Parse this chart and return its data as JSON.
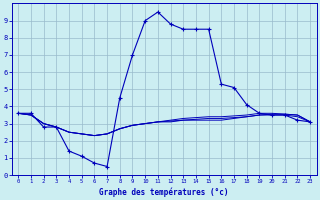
{
  "xlabel": "Graphe des températures (°c)",
  "bg_color": "#cceef2",
  "line_color": "#0000bb",
  "grid_color": "#99bbcc",
  "xlim": [
    -0.5,
    23.5
  ],
  "ylim": [
    0,
    10
  ],
  "xticks": [
    0,
    1,
    2,
    3,
    4,
    5,
    6,
    7,
    8,
    9,
    10,
    11,
    12,
    13,
    14,
    15,
    16,
    17,
    18,
    19,
    20,
    21,
    22,
    23
  ],
  "yticks": [
    0,
    1,
    2,
    3,
    4,
    5,
    6,
    7,
    8,
    9
  ],
  "series1_x": [
    0,
    1,
    2,
    3,
    4,
    5,
    6,
    7,
    8,
    9,
    10,
    11,
    12,
    13,
    14,
    15,
    16,
    17,
    18,
    19,
    20,
    21,
    22,
    23
  ],
  "series1_y": [
    3.6,
    3.6,
    2.8,
    2.8,
    1.4,
    1.1,
    0.7,
    0.5,
    4.5,
    7.0,
    9.0,
    9.5,
    8.8,
    8.5,
    8.5,
    8.5,
    5.3,
    5.1,
    4.1,
    3.6,
    3.5,
    3.5,
    3.2,
    3.1
  ],
  "series2_x": [
    0,
    1,
    2,
    3,
    4,
    5,
    6,
    7,
    8,
    9,
    10,
    11,
    12,
    13,
    14,
    15,
    16,
    17,
    18,
    19,
    20,
    21,
    22,
    23
  ],
  "series2_y": [
    3.6,
    3.5,
    3.0,
    2.8,
    2.5,
    2.4,
    2.3,
    2.4,
    2.7,
    2.9,
    3.0,
    3.1,
    3.1,
    3.2,
    3.2,
    3.2,
    3.2,
    3.3,
    3.4,
    3.5,
    3.5,
    3.5,
    3.4,
    3.1
  ],
  "series3_x": [
    0,
    1,
    2,
    3,
    4,
    5,
    6,
    7,
    8,
    9,
    10,
    11,
    12,
    13,
    14,
    15,
    16,
    17,
    18,
    19,
    20,
    21,
    22,
    23
  ],
  "series3_y": [
    3.6,
    3.5,
    3.0,
    2.8,
    2.5,
    2.4,
    2.3,
    2.4,
    2.7,
    2.9,
    3.0,
    3.1,
    3.15,
    3.2,
    3.25,
    3.3,
    3.3,
    3.35,
    3.4,
    3.5,
    3.55,
    3.55,
    3.5,
    3.1
  ],
  "series4_x": [
    0,
    1,
    2,
    3,
    4,
    5,
    6,
    7,
    8,
    9,
    10,
    11,
    12,
    13,
    14,
    15,
    16,
    17,
    18,
    19,
    20,
    21,
    22,
    23
  ],
  "series4_y": [
    3.6,
    3.5,
    3.0,
    2.8,
    2.5,
    2.4,
    2.3,
    2.4,
    2.7,
    2.9,
    3.0,
    3.1,
    3.2,
    3.3,
    3.35,
    3.4,
    3.4,
    3.45,
    3.5,
    3.6,
    3.6,
    3.55,
    3.5,
    3.1
  ]
}
